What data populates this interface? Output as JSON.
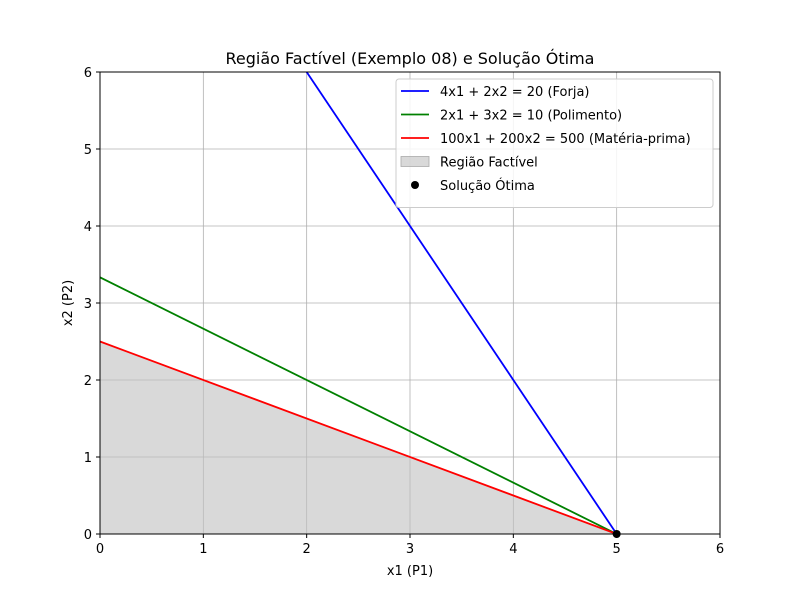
{
  "chart_data": {
    "type": "line",
    "title": "Região Factível (Exemplo 08) e Solução Ótima",
    "xlabel": "x1 (P1)",
    "ylabel": "x2 (P2)",
    "xlim": [
      0,
      6
    ],
    "ylim": [
      0,
      6
    ],
    "x_ticks": [
      0,
      1,
      2,
      3,
      4,
      5,
      6
    ],
    "y_ticks": [
      0,
      1,
      2,
      3,
      4,
      5,
      6
    ],
    "grid": true,
    "legend_position": "top-right",
    "series": [
      {
        "name": "4x1 + 2x2 = 20 (Forja)",
        "kind": "line",
        "color": "#0000ff",
        "points": [
          [
            2,
            6
          ],
          [
            5,
            0
          ]
        ]
      },
      {
        "name": "2x1 + 3x2 = 10 (Polimento)",
        "kind": "line",
        "color": "#008000",
        "points": [
          [
            0,
            3.3333
          ],
          [
            5,
            0
          ]
        ]
      },
      {
        "name": "100x1 + 200x2 = 500 (Matéria-prima)",
        "kind": "line",
        "color": "#ff0000",
        "points": [
          [
            0,
            2.5
          ],
          [
            5,
            0
          ]
        ]
      },
      {
        "name": "Região Factível",
        "kind": "area",
        "color": "#bfbfbf",
        "points": [
          [
            0,
            0
          ],
          [
            0,
            2.5
          ],
          [
            5,
            0
          ]
        ]
      },
      {
        "name": "Solução Ótima",
        "kind": "scatter",
        "color": "#000000",
        "points": [
          [
            5,
            0
          ]
        ]
      }
    ]
  }
}
